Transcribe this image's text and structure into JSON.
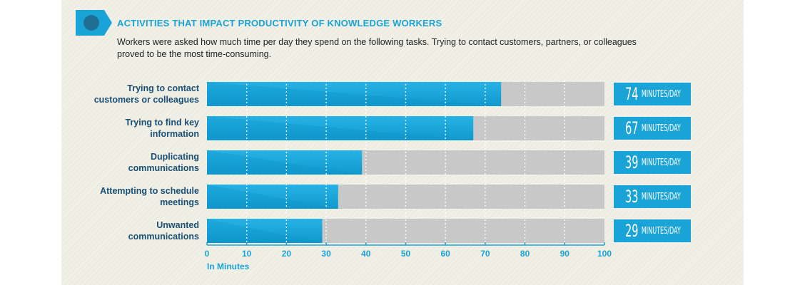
{
  "header": {
    "title": "ACTIVITIES THAT IMPACT PRODUCTIVITY OF KNOWLEDGE WORKERS",
    "subtitle": "Workers were asked how much time per day they spend on the following tasks. Trying to contact customers, partners, or colleagues proved to be the most time-consuming."
  },
  "colors": {
    "bar": "#1aa3d6",
    "bar_dark": "#0f95c9",
    "track": "#c8c8c8",
    "label": "#1b4f76",
    "accent": "#1aa3d6",
    "icon": "#1e6f91"
  },
  "chart_data": {
    "type": "bar",
    "orientation": "horizontal",
    "categories": [
      "Trying to contact customers or colleagues",
      "Trying to find key information",
      "Duplicating communications",
      "Attempting to schedule meetings",
      "Unwanted communications"
    ],
    "values": [
      74,
      67,
      39,
      33,
      29
    ],
    "value_labels": [
      "74",
      "67",
      "39",
      "33",
      "29"
    ],
    "value_unit": "MINUTES/DAY",
    "xlabel": "In Minutes",
    "xlim": [
      0,
      100
    ],
    "xticks": [
      "0",
      "10",
      "20",
      "30",
      "40",
      "50",
      "60",
      "70",
      "80",
      "90",
      "100"
    ],
    "grid": true
  },
  "labels": [
    [
      "Trying to contact",
      "customers or colleagues"
    ],
    [
      "Trying to find key",
      "information"
    ],
    [
      "Duplicating",
      "communications"
    ],
    [
      "Attempting to schedule",
      "meetings"
    ],
    [
      "Unwanted",
      "communications"
    ]
  ]
}
